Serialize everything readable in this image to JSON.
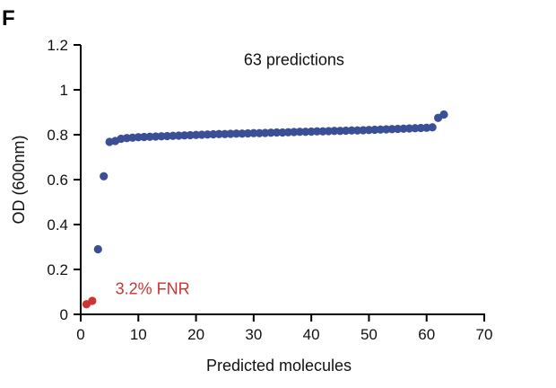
{
  "panel_label": "F",
  "chart_data": {
    "type": "scatter",
    "xlabel": "Predicted molecules",
    "ylabel": "OD (600nm)",
    "xlim": [
      0,
      70
    ],
    "ylim": [
      0,
      1.2
    ],
    "x_ticks": [
      "0",
      "10",
      "20",
      "30",
      "40",
      "50",
      "60",
      "70"
    ],
    "y_ticks": [
      "0",
      "0.2",
      "0.4",
      "0.6",
      "0.8",
      "1",
      "1.2"
    ],
    "colors": {
      "low": "#cc3333",
      "high": "#3a4f96",
      "bar_start": "#c8373a",
      "bar_end": "#2a3486"
    },
    "header_bar": {
      "x_range": [
        1,
        70
      ],
      "y": 1.2
    },
    "annotations": [
      {
        "text": "63 predictions",
        "x": 37,
        "y": 1.11,
        "color": "#111111"
      },
      {
        "text": "3.2% FNR",
        "x": 6,
        "y": 0.09,
        "color": "#cc3333"
      }
    ],
    "series": [
      {
        "color_key": "low",
        "x": [
          1,
          2
        ],
        "y": [
          0.045,
          0.06
        ]
      },
      {
        "color_key": "high",
        "x": [
          3,
          4,
          5,
          6,
          7,
          8,
          9,
          10,
          11,
          12,
          13,
          14,
          15,
          16,
          17,
          18,
          19,
          20,
          21,
          22,
          23,
          24,
          25,
          26,
          27,
          28,
          29,
          30,
          31,
          32,
          33,
          34,
          35,
          36,
          37,
          38,
          39,
          40,
          41,
          42,
          43,
          44,
          45,
          46,
          47,
          48,
          49,
          50,
          51,
          52,
          53,
          54,
          55,
          56,
          57,
          58,
          59,
          60,
          61,
          62,
          63
        ],
        "y": [
          0.29,
          0.615,
          0.768,
          0.772,
          0.782,
          0.785,
          0.787,
          0.789,
          0.79,
          0.791,
          0.792,
          0.793,
          0.794,
          0.795,
          0.796,
          0.797,
          0.798,
          0.799,
          0.8,
          0.801,
          0.802,
          0.803,
          0.803,
          0.804,
          0.805,
          0.805,
          0.806,
          0.807,
          0.807,
          0.808,
          0.809,
          0.81,
          0.81,
          0.811,
          0.812,
          0.813,
          0.813,
          0.814,
          0.815,
          0.815,
          0.816,
          0.817,
          0.817,
          0.818,
          0.819,
          0.819,
          0.82,
          0.821,
          0.822,
          0.823,
          0.824,
          0.825,
          0.826,
          0.827,
          0.828,
          0.829,
          0.83,
          0.831,
          0.833,
          0.875,
          0.89
        ]
      }
    ]
  }
}
